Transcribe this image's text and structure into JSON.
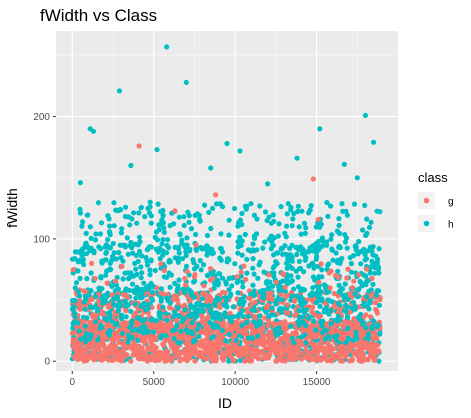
{
  "chart_data": {
    "type": "scatter",
    "title": "fWidth vs Class",
    "xlabel": "ID",
    "ylabel": "fWidth",
    "xlim": [
      -1000,
      20000
    ],
    "ylim": [
      -8,
      270
    ],
    "x_ticks": [
      0,
      5000,
      10000,
      15000
    ],
    "x_tick_labels": [
      "0",
      "5000",
      "10000",
      "15000"
    ],
    "y_ticks": [
      0,
      100,
      200
    ],
    "y_tick_labels": [
      "0",
      "100",
      "200"
    ],
    "grid": true,
    "legend": {
      "title": "class",
      "placement": "right",
      "entries": [
        {
          "label": "g",
          "color": "#F8766D"
        },
        {
          "label": "h",
          "color": "#00BFC4"
        }
      ]
    },
    "series": [
      {
        "name": "g",
        "color": "#F8766D",
        "n_points": 12332,
        "x_range": [
          0,
          18900
        ],
        "typical_range": [
          0,
          60
        ],
        "notable_points": [
          {
            "x": 4100,
            "y": 176
          },
          {
            "x": 14800,
            "y": 149
          },
          {
            "x": 6300,
            "y": 123
          },
          {
            "x": 15100,
            "y": 116
          },
          {
            "x": 8800,
            "y": 136
          },
          {
            "x": 7600,
            "y": 95
          }
        ]
      },
      {
        "name": "h",
        "color": "#00BFC4",
        "n_points": 6688,
        "x_range": [
          0,
          18900
        ],
        "typical_range": [
          0,
          130
        ],
        "notable_points": [
          {
            "x": 5800,
            "y": 257
          },
          {
            "x": 7000,
            "y": 228
          },
          {
            "x": 2900,
            "y": 221
          },
          {
            "x": 18000,
            "y": 201
          },
          {
            "x": 1100,
            "y": 190
          },
          {
            "x": 1300,
            "y": 188
          },
          {
            "x": 15200,
            "y": 190
          },
          {
            "x": 9500,
            "y": 178
          },
          {
            "x": 18500,
            "y": 179
          },
          {
            "x": 5200,
            "y": 173
          },
          {
            "x": 10300,
            "y": 172
          },
          {
            "x": 13800,
            "y": 166
          },
          {
            "x": 3600,
            "y": 160
          },
          {
            "x": 16700,
            "y": 161
          },
          {
            "x": 8500,
            "y": 158
          },
          {
            "x": 17500,
            "y": 150
          },
          {
            "x": 12000,
            "y": 145
          },
          {
            "x": 500,
            "y": 146
          }
        ]
      }
    ]
  }
}
